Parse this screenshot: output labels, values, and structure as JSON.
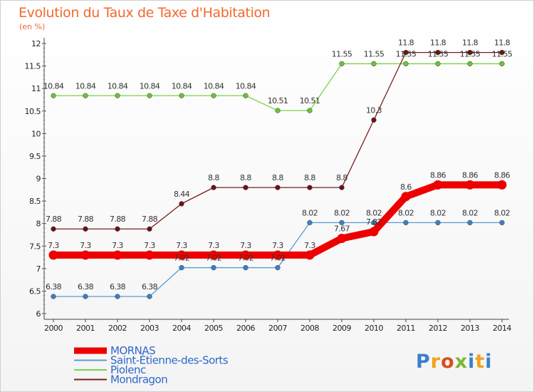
{
  "header": {
    "title": "Evolution du Taux de Taxe d'Habitation",
    "unit": "(en %)"
  },
  "logo": {
    "letters": [
      "P",
      "r",
      "o",
      "x",
      "i",
      "t",
      "i"
    ],
    "colors": [
      "#3d7fcf",
      "#f2a21a",
      "#d94f1e",
      "#7ab82f",
      "#3d7fcf",
      "#f2a21a",
      "#3d7fcf"
    ]
  },
  "chart_data": {
    "type": "line",
    "title": "Evolution du Taux de Taxe d'Habitation",
    "ylabel": "(en %)",
    "x": [
      2000,
      2001,
      2002,
      2003,
      2004,
      2005,
      2006,
      2007,
      2008,
      2009,
      2010,
      2011,
      2012,
      2013,
      2014
    ],
    "xticks": [
      "2000",
      "2001",
      "2002",
      "2003",
      "2004",
      "2005",
      "2006",
      "2007",
      "2008",
      "2009",
      "2010",
      "2011",
      "2012",
      "2013",
      "2014"
    ],
    "ylim": [
      6,
      12
    ],
    "yticks": [
      "6",
      "6.5",
      "7",
      "7.5",
      "8",
      "8.5",
      "9",
      "9.5",
      "10",
      "10.5",
      "11",
      "11.5",
      "12"
    ],
    "grid": false,
    "legend": "bottom-left",
    "series": [
      {
        "name": "Saint-Étienne-des-Sorts",
        "color": "#5a9bd5",
        "marker": "#3f7fc0",
        "values": [
          6.38,
          6.38,
          6.38,
          6.38,
          7.02,
          7.02,
          7.02,
          7.02,
          8.02,
          8.02,
          8.02,
          8.02,
          8.02,
          8.02,
          8.02
        ],
        "labels": [
          "6.38",
          "6.38",
          "6.38",
          "6.38",
          "7.02",
          "7.02",
          "7.02",
          "7.02",
          "8.02",
          "8.02",
          "8.02",
          "8.02",
          "8.02",
          "8.02",
          "8.02"
        ]
      },
      {
        "name": "Piolenc",
        "color": "#7cd14a",
        "marker": "#6cc13a",
        "values": [
          10.84,
          10.84,
          10.84,
          10.84,
          10.84,
          10.84,
          10.84,
          10.51,
          10.51,
          11.55,
          11.55,
          11.55,
          11.55,
          11.55,
          11.55
        ],
        "labels": [
          "10.84",
          "10.84",
          "10.84",
          "10.84",
          "10.84",
          "10.84",
          "10.84",
          "10.51",
          "10.51",
          "11.55",
          "11.55",
          "11.55",
          "11.55",
          "11.55",
          "11.55"
        ]
      },
      {
        "name": "Mondragon",
        "color": "#7a1f1f",
        "marker": "#6a1414",
        "values": [
          7.88,
          7.88,
          7.88,
          7.88,
          8.44,
          8.8,
          8.8,
          8.8,
          8.8,
          8.8,
          10.3,
          11.8,
          11.8,
          11.8,
          11.8
        ],
        "labels": [
          "7.88",
          "7.88",
          "7.88",
          "7.88",
          "8.44",
          "8.8",
          "8.8",
          "8.8",
          "8.8",
          "8.8",
          "10.3",
          "11.8",
          "11.8",
          "11.8",
          "11.8"
        ]
      },
      {
        "name": "MORNAS",
        "color": "#ee0000",
        "marker": "#ee0000",
        "bold": true,
        "values": [
          7.3,
          7.3,
          7.3,
          7.3,
          7.3,
          7.3,
          7.3,
          7.3,
          7.3,
          7.67,
          7.82,
          8.6,
          8.86,
          8.86,
          8.86
        ],
        "labels": [
          "7.3",
          "7.3",
          "7.3",
          "7.3",
          "7.3",
          "7.3",
          "7.3",
          "7.3",
          "7.3",
          "7.67",
          "7.82",
          "8.6",
          "8.86",
          "8.86",
          "8.86"
        ]
      }
    ],
    "legend_entries": [
      {
        "name": "MORNAS",
        "color": "#ee0000",
        "text_color": "#2f67c9",
        "thick": true
      },
      {
        "name": "Saint-Étienne-des-Sorts",
        "color": "#5a9bd5",
        "text_color": "#2f67c9",
        "thick": false
      },
      {
        "name": "Piolenc",
        "color": "#7cd14a",
        "text_color": "#2f67c9",
        "thick": false
      },
      {
        "name": "Mondragon",
        "color": "#7a1f1f",
        "text_color": "#2f67c9",
        "thick": false
      }
    ]
  }
}
